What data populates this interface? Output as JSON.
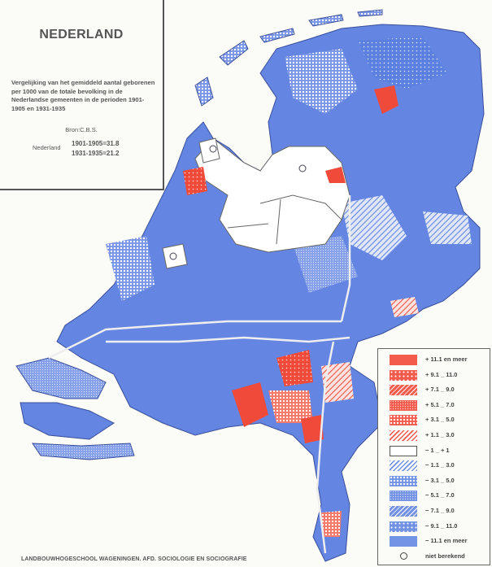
{
  "title": "NEDERLAND",
  "description": "Vergelijking van het gemiddeld aantal geborenen per 1000 van de totale bevolking in de Nederlandse gemeenten in de perioden 1901-1905 en 1931-1935",
  "source": "Bron:C.B.S.",
  "national": {
    "label": "Nederland",
    "period1": "1901-1905=31.8",
    "period2": "1931-1935=21.2"
  },
  "colors": {
    "increase": "#f04a3a",
    "decrease": "#5b80e0",
    "neutral": "#ffffff"
  },
  "legend": [
    {
      "label": "+ 11.1 en meer",
      "color": "#f04a3a",
      "pattern": "solid"
    },
    {
      "label": "+ 9.1 _ 11.0",
      "color": "#f04a3a",
      "pattern": "dots"
    },
    {
      "label": "+ 7.1 _ 9.0",
      "color": "#f04a3a",
      "pattern": "hatch-dense"
    },
    {
      "label": "+ 5.1 _ 7.0",
      "color": "#f04a3a",
      "pattern": "fine"
    },
    {
      "label": "+ 3.1 _ 5.0",
      "color": "#f04a3a",
      "pattern": "checks"
    },
    {
      "label": "+ 1.1 _ 3.0",
      "color": "#f04a3a",
      "pattern": "hatch"
    },
    {
      "label": "− 1 _ + 1",
      "color": "#ffffff",
      "pattern": "outline"
    },
    {
      "label": "− 1.1 _ 3.0",
      "color": "#5b80e0",
      "pattern": "hatch"
    },
    {
      "label": "− 3.1 _ 5.0",
      "color": "#5b80e0",
      "pattern": "checks"
    },
    {
      "label": "− 5.1 _ 7.0",
      "color": "#5b80e0",
      "pattern": "fine"
    },
    {
      "label": "− 7.1 _ 9.0",
      "color": "#5b80e0",
      "pattern": "hatch-dense"
    },
    {
      "label": "− 9.1 _ 11.0",
      "color": "#5b80e0",
      "pattern": "dots"
    },
    {
      "label": "− 11.1 en meer",
      "color": "#5b80e0",
      "pattern": "solid"
    }
  ],
  "legend_not_calculated": {
    "label": "niet berekend",
    "icon": "circle-icon"
  },
  "footer": "LANDBOUWHOGESCHOOL WAGENINGEN. AFD. SOCIOLOGIE EN SOCIOGRAFIE"
}
